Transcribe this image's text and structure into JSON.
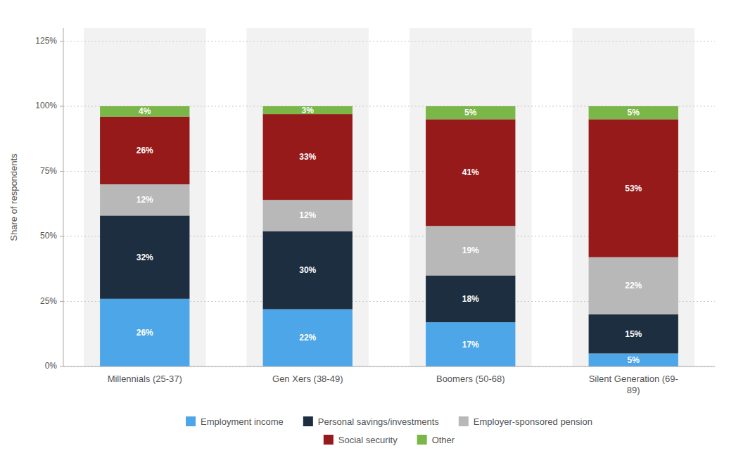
{
  "chart_data": {
    "type": "bar",
    "stacked": true,
    "categories": [
      "Millennials (25-37)",
      "Gen Xers (38-49)",
      "Boomers (50-68)",
      "Silent Generation (69-\n89)"
    ],
    "series": [
      {
        "name": "Employment income",
        "color": "#4da6e8",
        "values": [
          26,
          22,
          17,
          5
        ],
        "value_labels": [
          "26%",
          "22%",
          "17%",
          "5%"
        ]
      },
      {
        "name": "Personal savings/investments",
        "color": "#1c2e40",
        "values": [
          32,
          30,
          18,
          15
        ],
        "value_labels": [
          "32%",
          "30%",
          "18%",
          "15%"
        ]
      },
      {
        "name": "Employer-sponsored pension",
        "color": "#b8b8b8",
        "values": [
          12,
          12,
          19,
          22
        ],
        "value_labels": [
          "12%",
          "12%",
          "19%",
          "22%"
        ]
      },
      {
        "name": "Social security",
        "color": "#961a1a",
        "values": [
          26,
          33,
          41,
          53
        ],
        "value_labels": [
          "26%",
          "33%",
          "41%",
          "53%"
        ]
      },
      {
        "name": "Other",
        "color": "#7ab648",
        "values": [
          4,
          3,
          5,
          5
        ],
        "value_labels": [
          "4%",
          "3%",
          "5%",
          "5%"
        ]
      }
    ],
    "y_label": "Share of respondents",
    "ylim": [
      0,
      130
    ],
    "yticks": [
      {
        "value": 0,
        "label": "0%"
      },
      {
        "value": 25,
        "label": "25%"
      },
      {
        "value": 50,
        "label": "50%"
      },
      {
        "value": 75,
        "label": "75%"
      },
      {
        "value": 100,
        "label": "100%"
      },
      {
        "value": 125,
        "label": "125%"
      }
    ],
    "grid": true,
    "data_labels": true,
    "legend": "bottom"
  }
}
